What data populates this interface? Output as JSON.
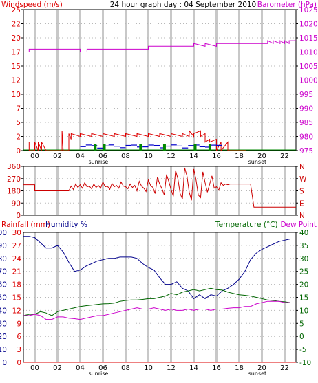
{
  "header": {
    "left_label": "Windspeed (m/s)",
    "title": "24 hour graph day : 04 September 2010",
    "right_label": "Barometer (hPa)"
  },
  "bottom_header": {
    "rain_label": "Rainfall (mm)",
    "hum_label": "Humidity %",
    "temp_label": "Temperature (°C)",
    "dew_label": "Dew Point"
  },
  "colors": {
    "wind": "#dd0000",
    "gust_green": "#008800",
    "avg_blue": "#0000cc",
    "baro": "#cc00cc",
    "dir": "#cc0000",
    "humidity": "#00008b",
    "temperature": "#006600",
    "dewpoint": "#cc00cc",
    "rain": "#dd0000",
    "grid": "#d0d0d0",
    "frame": "#000000"
  },
  "x_axis": {
    "ticks": [
      "00",
      "02",
      "04",
      "06",
      "08",
      "10",
      "12",
      "14",
      "16",
      "18",
      "20",
      "22"
    ],
    "sunrise_label": "sunrise",
    "sunset_label": "sunset",
    "sunrise_hour": 5.6,
    "sunset_hour": 19.6
  },
  "chart_data": [
    {
      "type": "line",
      "name": "wind-baro",
      "x_label": "hour",
      "xlim": [
        -1,
        23
      ],
      "ylim_left": [
        0,
        25
      ],
      "ylim_right": [
        975,
        1025
      ],
      "left_ticks": [
        "0",
        "2",
        "5",
        "7",
        "10",
        "12",
        "15",
        "17",
        "20",
        "22",
        "25"
      ],
      "right_ticks": [
        "975",
        "980",
        "985",
        "990",
        "995",
        "1000",
        "1005",
        "1010",
        "1015",
        "1020",
        "1025"
      ],
      "series": [
        {
          "name": "Windspeed (m/s)",
          "color": "#dd0000",
          "kind": "step",
          "axis": "left",
          "x": [
            -0.5,
            -0.5,
            -0.5,
            0.0,
            0.0,
            0.3,
            0.3,
            0.6,
            0.6,
            1.0,
            1.0,
            2.4,
            2.4,
            2.5,
            2.5,
            3.0,
            3.0,
            3.2,
            3.2,
            4.0,
            4.0,
            5.0,
            5.0,
            6.0,
            6.0,
            7.0,
            7.0,
            8.0,
            8.0,
            9.0,
            9.0,
            10.0,
            10.0,
            11.0,
            11.0,
            12.0,
            12.0,
            13.0,
            13.0,
            13.6,
            13.6,
            14.0,
            14.0,
            14.6,
            14.6,
            15.0,
            15.0,
            15.4,
            15.4,
            16.0,
            16.0,
            16.4,
            16.4,
            17.0,
            17.0,
            17.2,
            17.2,
            18.6,
            18.6
          ],
          "y": [
            0,
            1.5,
            0,
            0,
            1.5,
            0,
            1.5,
            0,
            1.5,
            0,
            0,
            0,
            3.5,
            0,
            0,
            0,
            3.0,
            2.0,
            3.0,
            2.5,
            3.0,
            2.5,
            3.0,
            2.5,
            3.0,
            2.5,
            3.0,
            2.5,
            3.0,
            2.5,
            3.0,
            2.5,
            3.0,
            2.5,
            3.0,
            2.5,
            3.0,
            2.5,
            3.0,
            2.5,
            3.5,
            2.5,
            3.0,
            3.5,
            2.5,
            3.0,
            1.5,
            2.0,
            1.5,
            2.0,
            0,
            1.5,
            0,
            1.5,
            0,
            0,
            0,
            0,
            0
          ]
        },
        {
          "name": "Barometer (hPa)",
          "color": "#cc00cc",
          "kind": "step",
          "axis": "right",
          "x": [
            -1.0,
            -0.5,
            -0.5,
            4.0,
            4.0,
            4.6,
            4.6,
            10.0,
            10.0,
            14.0,
            14.0,
            15.0,
            15.0,
            16.0,
            16.0,
            20.5,
            20.5,
            21.0,
            21.0,
            21.6,
            21.6,
            22.0,
            22.0,
            22.4,
            22.4,
            23.0
          ],
          "y": [
            1010,
            1010,
            1011,
            1011,
            1010,
            1010,
            1011,
            1011,
            1012,
            1012,
            1013,
            1012,
            1013,
            1012,
            1013,
            1013,
            1014,
            1013,
            1014,
            1013,
            1014,
            1013,
            1014,
            1013,
            1014,
            1014
          ]
        }
      ]
    },
    {
      "type": "line",
      "name": "wind-direction",
      "xlim": [
        -1,
        23
      ],
      "ylim": [
        0,
        360
      ],
      "left_ticks": [
        "0",
        "90",
        "180",
        "270",
        "360"
      ],
      "right_ticks": [
        "N",
        "E",
        "S",
        "W",
        "N"
      ],
      "series": [
        {
          "name": "Wind direction",
          "color": "#cc0000",
          "x": [
            -1.0,
            0.0,
            0.0,
            3.0,
            3.2,
            3.4,
            3.6,
            3.8,
            4.0,
            4.2,
            4.4,
            4.6,
            4.8,
            5.0,
            5.2,
            5.4,
            5.6,
            5.8,
            6.0,
            6.2,
            6.4,
            6.6,
            6.8,
            7.0,
            7.2,
            7.4,
            7.6,
            7.8,
            8.0,
            8.2,
            8.4,
            8.6,
            8.8,
            9.0,
            9.2,
            9.4,
            9.6,
            9.8,
            10.0,
            10.2,
            10.4,
            10.6,
            10.8,
            11.0,
            11.2,
            11.4,
            11.6,
            11.8,
            12.0,
            12.2,
            12.4,
            12.6,
            12.8,
            13.0,
            13.2,
            13.4,
            13.6,
            13.8,
            14.0,
            14.2,
            14.4,
            14.6,
            14.8,
            15.0,
            15.2,
            15.4,
            15.6,
            15.8,
            16.0,
            16.2,
            16.4,
            16.6,
            16.8,
            17.0,
            17.2,
            19.0,
            19.3,
            19.3,
            23.0
          ],
          "y": [
            225,
            225,
            180,
            180,
            215,
            190,
            230,
            205,
            225,
            200,
            240,
            210,
            215,
            195,
            230,
            205,
            220,
            200,
            245,
            210,
            215,
            190,
            235,
            210,
            220,
            200,
            245,
            215,
            210,
            195,
            230,
            205,
            220,
            180,
            250,
            215,
            200,
            175,
            260,
            220,
            205,
            160,
            280,
            230,
            195,
            150,
            300,
            250,
            190,
            140,
            330,
            270,
            160,
            120,
            350,
            290,
            170,
            110,
            340,
            260,
            150,
            130,
            320,
            240,
            170,
            230,
            290,
            200,
            210,
            185,
            240,
            220,
            230,
            225,
            230,
            230,
            60,
            60,
            60
          ]
        }
      ]
    },
    {
      "type": "line",
      "name": "weather",
      "xlim": [
        -1,
        23
      ],
      "ylim_humidity": [
        0,
        100
      ],
      "ylim_temperature": [
        -10,
        40
      ],
      "humidity_ticks": [
        "0",
        "10",
        "20",
        "30",
        "40",
        "50",
        "60",
        "70",
        "80",
        "90",
        "100"
      ],
      "rain_ticks": [
        "0",
        "3",
        "6",
        "9",
        "12",
        "15",
        "18",
        "21",
        "24",
        "27",
        "30"
      ],
      "temp_ticks": [
        "-10",
        "-5",
        "0",
        "5",
        "10",
        "15",
        "20",
        "25",
        "30",
        "35",
        "40"
      ],
      "series": [
        {
          "name": "Humidity %",
          "color": "#00008b",
          "axis": "humidity",
          "x": [
            -1.0,
            -0.5,
            0.0,
            0.5,
            1.0,
            1.5,
            2.0,
            2.5,
            3.0,
            3.5,
            4.0,
            4.5,
            5.0,
            5.5,
            6.0,
            6.5,
            7.0,
            7.5,
            8.0,
            8.5,
            9.0,
            9.5,
            10.0,
            10.5,
            11.0,
            11.5,
            12.0,
            12.5,
            13.0,
            13.5,
            14.0,
            14.5,
            15.0,
            15.5,
            16.0,
            16.5,
            17.0,
            17.5,
            18.0,
            18.5,
            19.0,
            19.5,
            20.0,
            20.5,
            21.0,
            21.5,
            22.0,
            22.5
          ],
          "y": [
            97,
            97,
            96,
            92,
            88,
            88,
            90,
            85,
            77,
            70,
            71,
            74,
            76,
            78,
            79,
            80,
            80,
            81,
            81,
            81,
            80,
            76,
            73,
            71,
            65,
            60,
            60,
            62,
            57,
            55,
            49,
            52,
            49,
            52,
            51,
            55,
            57,
            60,
            64,
            70,
            79,
            84,
            87,
            89,
            91,
            93,
            94,
            95
          ]
        },
        {
          "name": "Temperature (°C)",
          "color": "#006600",
          "axis": "temperature",
          "x": [
            -1.0,
            -0.5,
            0.0,
            0.5,
            1.0,
            1.5,
            2.0,
            2.5,
            3.0,
            3.5,
            4.0,
            4.5,
            5.0,
            5.5,
            6.0,
            6.5,
            7.0,
            7.5,
            8.0,
            8.5,
            9.0,
            9.5,
            10.0,
            10.5,
            11.0,
            11.5,
            12.0,
            12.5,
            13.0,
            13.5,
            14.0,
            14.5,
            15.0,
            15.5,
            16.0,
            16.5,
            17.0,
            17.5,
            18.0,
            18.5,
            19.0,
            19.5,
            20.0,
            20.5,
            21.0,
            21.5,
            22.0,
            22.5
          ],
          "y": [
            8.0,
            8.5,
            8.5,
            9.5,
            9.0,
            8.0,
            9.5,
            10.0,
            10.5,
            11.0,
            11.5,
            11.8,
            12.0,
            12.3,
            12.5,
            12.6,
            12.8,
            13.5,
            13.8,
            14.0,
            14.0,
            14.2,
            14.5,
            14.5,
            15.0,
            15.5,
            16.5,
            16.0,
            17.0,
            17.5,
            18.0,
            17.5,
            18.0,
            18.5,
            18.0,
            17.8,
            17.0,
            16.5,
            16.0,
            15.8,
            15.5,
            15.0,
            14.5,
            14.0,
            13.8,
            13.5,
            13.3,
            13.0
          ]
        },
        {
          "name": "Dew Point",
          "color": "#cc00cc",
          "axis": "temperature",
          "x": [
            -1.0,
            -0.5,
            0.0,
            0.5,
            1.0,
            1.5,
            2.0,
            2.5,
            3.0,
            3.5,
            4.0,
            4.5,
            5.0,
            5.5,
            6.0,
            6.5,
            7.0,
            7.5,
            8.0,
            8.5,
            9.0,
            9.5,
            10.0,
            10.5,
            11.0,
            11.5,
            12.0,
            12.5,
            13.0,
            13.5,
            14.0,
            14.5,
            15.0,
            15.5,
            16.0,
            16.5,
            17.0,
            17.5,
            18.0,
            18.5,
            19.0,
            19.5,
            20.0,
            20.5,
            21.0,
            21.5,
            22.0,
            22.5
          ],
          "y": [
            8.0,
            8.0,
            8.5,
            8.0,
            6.5,
            6.5,
            7.5,
            7.5,
            7.0,
            6.8,
            6.5,
            7.0,
            7.5,
            8.0,
            8.0,
            8.5,
            9.0,
            9.5,
            10.0,
            10.5,
            11.0,
            10.5,
            10.5,
            11.0,
            10.5,
            10.0,
            10.5,
            10.0,
            10.0,
            10.5,
            10.0,
            10.5,
            10.5,
            10.0,
            10.5,
            10.5,
            10.8,
            11.0,
            11.0,
            11.5,
            11.5,
            12.5,
            13.0,
            13.5,
            13.5,
            13.5,
            13.0,
            13.0
          ]
        },
        {
          "name": "Rainfall (mm)",
          "color": "#dd0000",
          "axis": "humidity",
          "x": [
            -1.0,
            23.0
          ],
          "y": [
            0.0,
            0.0
          ]
        }
      ]
    }
  ]
}
